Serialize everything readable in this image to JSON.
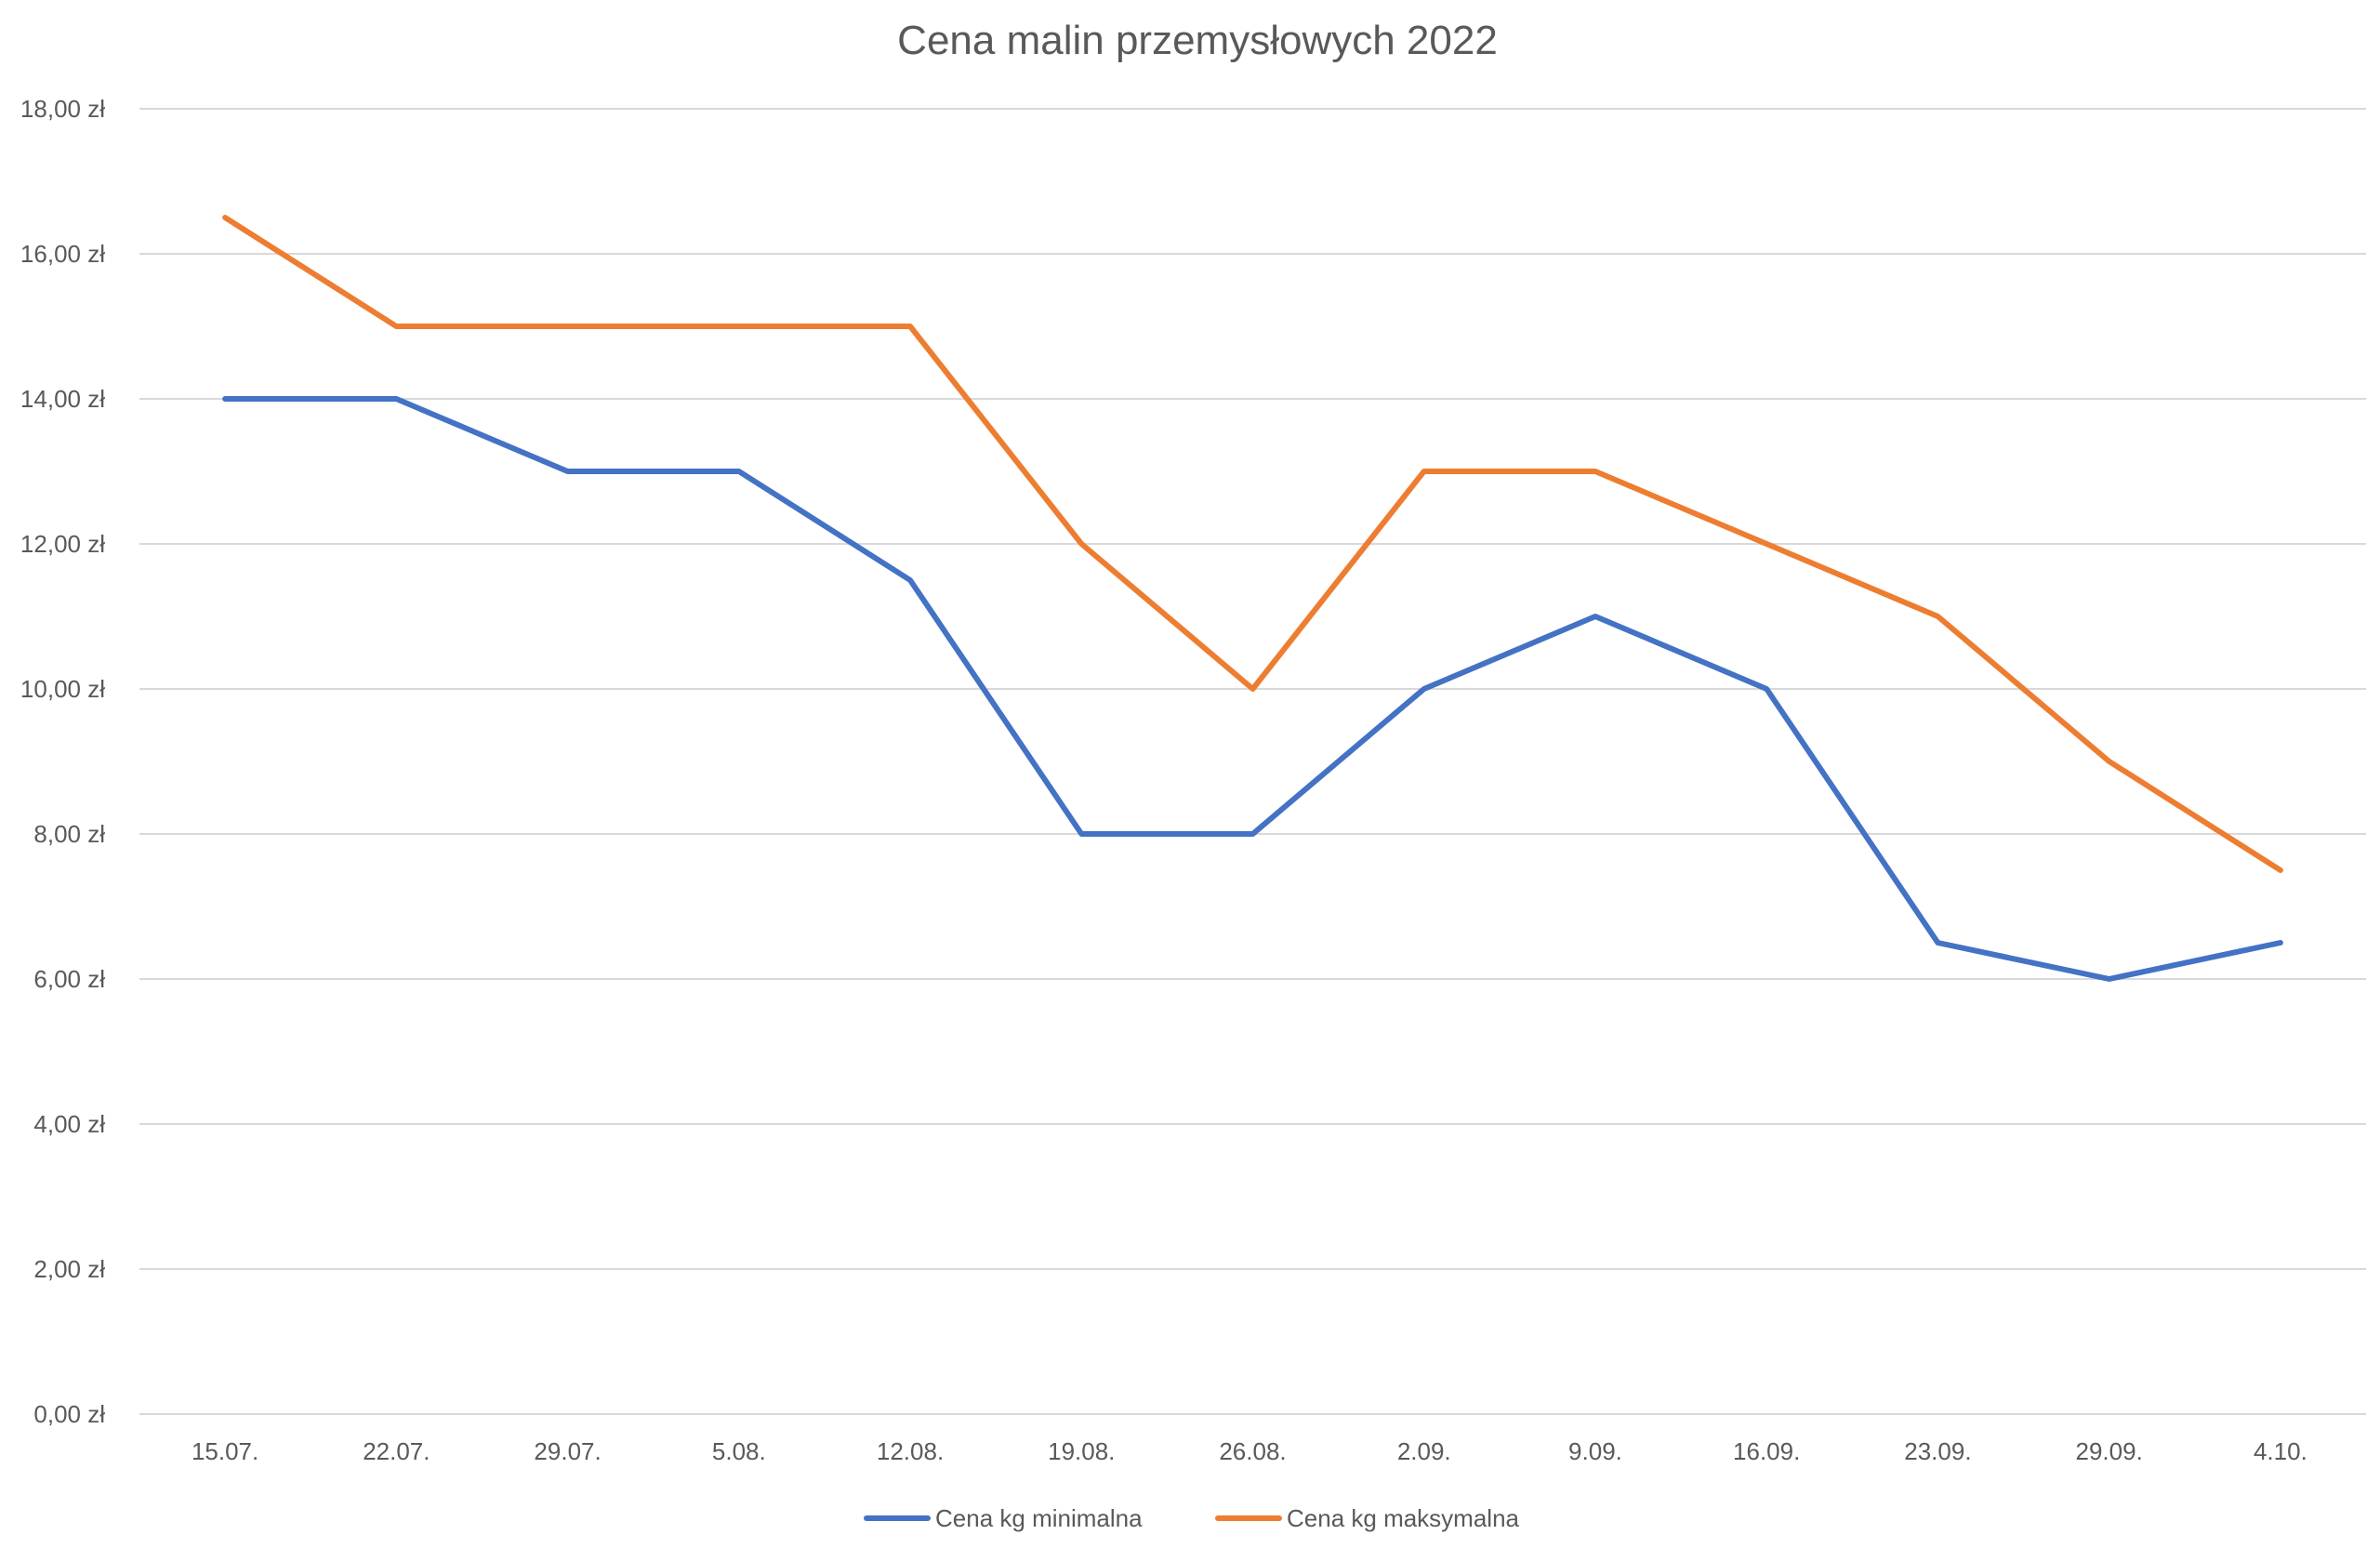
{
  "chart_data": {
    "type": "line",
    "title": "Cena malin przemysłowych 2022",
    "xlabel": "",
    "ylabel": "",
    "categories": [
      "15.07.",
      "22.07.",
      "29.07.",
      "5.08.",
      "12.08.",
      "19.08.",
      "26.08.",
      "2.09.",
      "9.09.",
      "16.09.",
      "23.09.",
      "29.09.",
      "4.10."
    ],
    "ylim": [
      0,
      18
    ],
    "yticks": [
      0,
      2,
      4,
      6,
      8,
      10,
      12,
      14,
      16,
      18
    ],
    "ytick_labels": [
      "0,00 zł",
      "2,00 zł",
      "4,00 zł",
      "6,00 zł",
      "8,00 zł",
      "10,00 zł",
      "12,00 zł",
      "14,00 zł",
      "16,00 zł",
      "18,00 zł"
    ],
    "grid": "horizontal",
    "legend_position": "bottom",
    "series": [
      {
        "name": "Cena kg minimalna",
        "color": "#4472c4",
        "values": [
          14,
          14,
          13,
          13,
          11.5,
          8,
          8,
          10,
          11,
          10,
          6.5,
          6,
          6.5
        ]
      },
      {
        "name": "Cena kg maksymalna",
        "color": "#ed7d31",
        "values": [
          16.5,
          15,
          15,
          15,
          15,
          12,
          10,
          13,
          13,
          12,
          11,
          9,
          7.5
        ]
      }
    ]
  }
}
